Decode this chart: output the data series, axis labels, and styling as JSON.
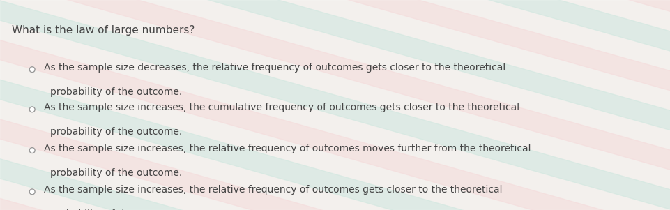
{
  "title": "What is the law of large numbers?",
  "options": [
    {
      "line1": "As the sample size decreases, the relative frequency of outcomes gets closer to the theoretical",
      "line2": "probability of the outcome."
    },
    {
      "line1": "As the sample size increases, the cumulative frequency of outcomes gets closer to the theoretical",
      "line2": "probability of the outcome."
    },
    {
      "line1": "As the sample size increases, the relative frequency of outcomes moves further from the theoretical",
      "line2": "probability of the outcome."
    },
    {
      "line1": "As the sample size increases, the relative frequency of outcomes gets closer to the theoretical",
      "line2": "probability of the outcome."
    }
  ],
  "bg_color": "#f0ece8",
  "text_color": "#444444",
  "title_fontsize": 11,
  "option_fontsize": 10,
  "circle_color": "#999999",
  "stripe_color_green": "#beded4",
  "stripe_color_pink": "#f0cece",
  "stripe_alpha": 0.55
}
